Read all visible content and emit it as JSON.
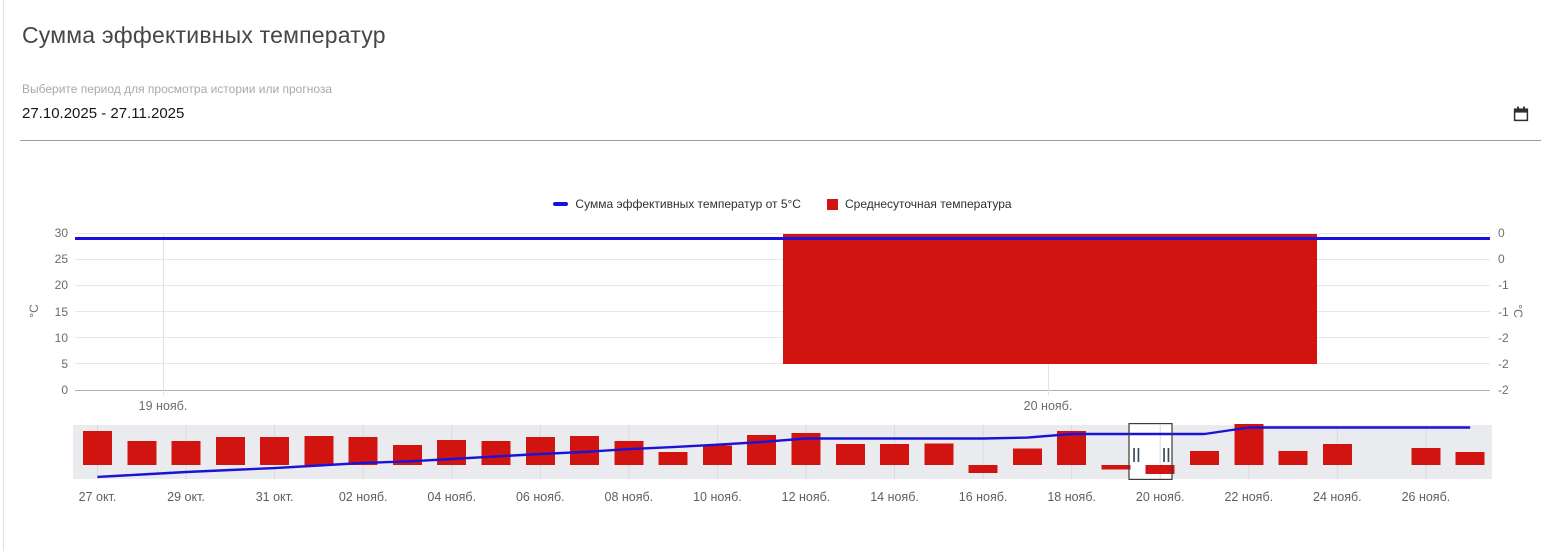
{
  "header": {
    "title": "Сумма эффективных температур",
    "subtitle": "Выберите период для просмотра истории или прогноза",
    "date_range": "27.10.2025 - 27.11.2025"
  },
  "legend": [
    {
      "label": "Сумма эффективных температур от 5°C",
      "marker": "line"
    },
    {
      "label": "Среднесуточная температура",
      "marker": "square"
    }
  ],
  "colors": {
    "line": "#1b12d8",
    "bar": "#d21411",
    "grid": "#e7e7e7",
    "axis_line": "#b0b0b0",
    "vgrid": "#e2e2e2",
    "nav_bg": "#e9ebef",
    "nav_grid": "#d8dade",
    "selection_fill": "#ffffff",
    "selection_border": "#3a3a3a",
    "handle": "#3d4a63",
    "icon": "#2e2e2e"
  },
  "chart_data": [
    {
      "id": "main",
      "type": "line+bar",
      "left_axis": {
        "label": "°C",
        "ticks": [
          30,
          25,
          20,
          15,
          10,
          5,
          0
        ],
        "range": [
          0,
          30
        ]
      },
      "right_axis": {
        "label": "°C",
        "tick_labels": [
          "0",
          "0",
          "-1",
          "-1",
          "-2",
          "-2",
          "-2"
        ],
        "range": [
          -2.4,
          0
        ]
      },
      "x_ticks": [
        "19 нояб.",
        "20 нояб."
      ],
      "grid": true,
      "legend_position": "top-center",
      "series": [
        {
          "name": "Сумма эффективных температур от 5°C",
          "type": "line",
          "axis": "left",
          "value": 29
        },
        {
          "name": "Среднесуточная температура",
          "type": "bar",
          "axis": "right",
          "points": [
            {
              "x": "20 нояб.",
              "from": 0,
              "value": -2.0
            }
          ]
        }
      ]
    },
    {
      "id": "navigator",
      "type": "line+bar",
      "x_tick_labels": [
        "27 окт.",
        "29 окт.",
        "31 окт.",
        "02 нояб.",
        "04 нояб.",
        "06 нояб.",
        "08 нояб.",
        "10 нояб.",
        "12 нояб.",
        "14 нояб.",
        "16 нояб.",
        "18 нояб.",
        "20 нояб.",
        "22 нояб.",
        "24 нояб.",
        "26 нояб."
      ],
      "dates": [
        "27.10",
        "28.10",
        "29.10",
        "30.10",
        "31.10",
        "01.11",
        "02.11",
        "03.11",
        "04.11",
        "05.11",
        "06.11",
        "07.11",
        "08.11",
        "09.11",
        "10.11",
        "11.11",
        "12.11",
        "13.11",
        "14.11",
        "15.11",
        "16.11",
        "17.11",
        "18.11",
        "19.11",
        "20.11",
        "21.11",
        "22.11",
        "23.11",
        "24.11",
        "25.11",
        "26.11",
        "27.11"
      ],
      "series": [
        {
          "name": "Среднесуточная температура",
          "type": "bar",
          "values": [
            7.7,
            5.5,
            5.5,
            6.4,
            6.4,
            6.6,
            6.4,
            4.5,
            5.7,
            5.5,
            6.4,
            6.6,
            5.4,
            3.0,
            4.4,
            6.8,
            7.3,
            4.8,
            4.8,
            4.9,
            -1.8,
            3.8,
            7.7,
            -1.0,
            -2.0,
            3.2,
            9.3,
            3.2,
            4.8,
            0,
            3.9,
            3.0
          ]
        },
        {
          "name": "Сумма эффективных температур от 5°C",
          "type": "line",
          "values": [
            0.7,
            2.3,
            4.0,
            5.3,
            6.6,
            8.3,
            10.0,
            11.0,
            12.6,
            14.3,
            15.9,
            17.3,
            19.2,
            20.5,
            22.1,
            23.9,
            26.2,
            26.2,
            26.2,
            26.2,
            26.2,
            26.8,
            29.2,
            29.2,
            29.2,
            29.2,
            33.5,
            33.5,
            33.5,
            33.5,
            33.5,
            33.5
          ]
        }
      ],
      "selected_range": [
        "19.11",
        "20.11"
      ]
    }
  ]
}
